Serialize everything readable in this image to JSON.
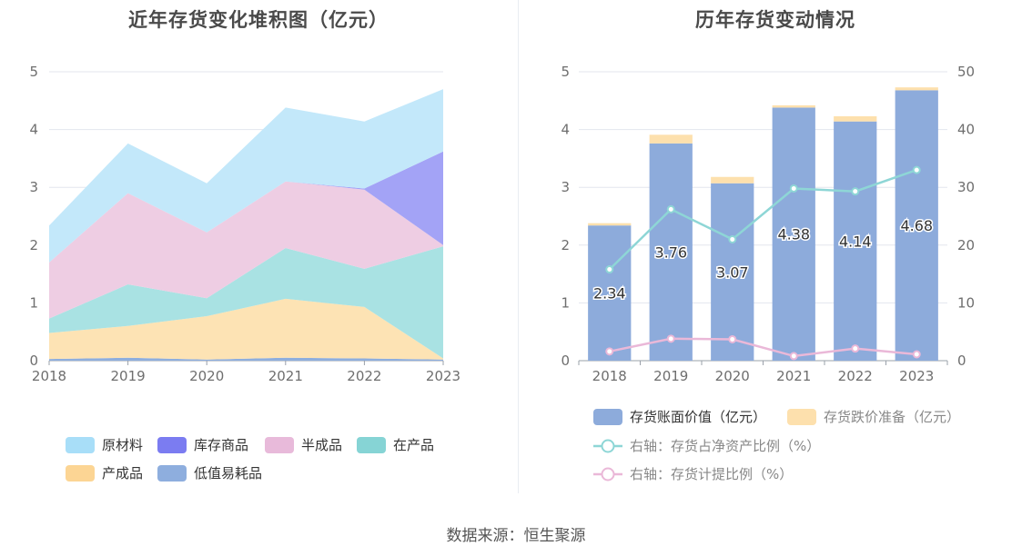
{
  "left": {
    "title": "近年存货变化堆积图（亿元）"
  },
  "right": {
    "title": "历年存货变动情况"
  },
  "source": "数据来源：恒生聚源",
  "chart_data": [
    {
      "type": "area",
      "stacked": true,
      "title": "近年存货变化堆积图（亿元）",
      "x": [
        "2018",
        "2019",
        "2020",
        "2021",
        "2022",
        "2023"
      ],
      "ylim": [
        0,
        5
      ],
      "yticks": [
        "0",
        "1",
        "2",
        "3",
        "4",
        "5"
      ],
      "grid": true,
      "legend_position": "bottom",
      "series": [
        {
          "name": "低值易耗品",
          "color": "#8eaede",
          "values": [
            0.03,
            0.05,
            0.02,
            0.05,
            0.04,
            0.02
          ]
        },
        {
          "name": "产成品",
          "color": "#fde3b4",
          "values": [
            0.45,
            0.55,
            0.75,
            1.02,
            0.89,
            0.02
          ]
        },
        {
          "name": "在产品",
          "color": "#a9e2e3",
          "values": [
            0.25,
            0.72,
            0.31,
            0.88,
            0.66,
            1.94
          ]
        },
        {
          "name": "半成品",
          "color": "#eecde3",
          "values": [
            0.97,
            1.58,
            1.14,
            1.15,
            1.37,
            0.02
          ]
        },
        {
          "name": "库存商品",
          "color": "#a3a3f6",
          "values": [
            0.0,
            0.0,
            0.0,
            0.0,
            0.02,
            1.62
          ]
        },
        {
          "name": "原材料",
          "color": "#c3e8fa",
          "values": [
            0.64,
            0.86,
            0.85,
            1.28,
            1.16,
            1.08
          ]
        }
      ],
      "legend": [
        {
          "name": "原材料",
          "color": "#a8def8"
        },
        {
          "name": "库存商品",
          "color": "#7b7cf1"
        },
        {
          "name": "半成品",
          "color": "#e8bada"
        },
        {
          "name": "在产品",
          "color": "#86d4d5"
        },
        {
          "name": "产成品",
          "color": "#fcd594"
        },
        {
          "name": "低值易耗品",
          "color": "#8eaede"
        }
      ]
    },
    {
      "type": "bar",
      "stacked": true,
      "title": "历年存货变动情况",
      "categories": [
        "2018",
        "2019",
        "2020",
        "2021",
        "2022",
        "2023"
      ],
      "ylim": [
        0,
        5
      ],
      "yticks": [
        "0",
        "1",
        "2",
        "3",
        "4",
        "5"
      ],
      "y2lim": [
        0,
        50
      ],
      "y2ticks": [
        "0",
        "10",
        "20",
        "30",
        "40",
        "50"
      ],
      "grid": true,
      "legend_position": "bottom",
      "series": [
        {
          "name": "存货账面价值（亿元）",
          "type": "bar",
          "color": "#8dabdb",
          "values": [
            2.34,
            3.76,
            3.07,
            4.38,
            4.14,
            4.68
          ],
          "labels": [
            "2.34",
            "3.76",
            "3.07",
            "4.38",
            "4.14",
            "4.68"
          ]
        },
        {
          "name": "存货跌价准备（亿元）",
          "type": "bar",
          "color": "#fde0ad",
          "values": [
            0.04,
            0.15,
            0.11,
            0.04,
            0.09,
            0.05
          ]
        },
        {
          "name": "右轴：存货占净资产比例（%）",
          "type": "line",
          "axis": "right",
          "color": "#8ed6d6",
          "values": [
            15.8,
            26.2,
            21.0,
            29.8,
            29.3,
            33.0
          ]
        },
        {
          "name": "右轴：存货计提比例（%）",
          "type": "line",
          "axis": "right",
          "color": "#eab8d8",
          "values": [
            1.6,
            3.8,
            3.7,
            0.8,
            2.1,
            1.1
          ]
        }
      ]
    }
  ]
}
